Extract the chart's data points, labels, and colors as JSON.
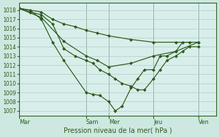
{
  "background_color": "#cce8e0",
  "plot_bg_color": "#d8eeea",
  "grid_color": "#b0ccc8",
  "line_color": "#2d5a1b",
  "marker_color": "#2d5a1b",
  "xlabel": "Pression niveau de la mer( hPa )",
  "ylim": [
    1006.5,
    1018.8
  ],
  "yticks": [
    1007,
    1008,
    1009,
    1010,
    1011,
    1012,
    1013,
    1014,
    1015,
    1016,
    1017,
    1018
  ],
  "xtick_labels": [
    "Mar",
    "Sam",
    "Mer",
    "Jeu",
    "Ven"
  ],
  "xtick_positions": [
    0,
    3,
    4,
    6,
    8
  ],
  "xlim": [
    0,
    8.8
  ],
  "series": [
    {
      "x": [
        0,
        1,
        1.5,
        2,
        2.5,
        3,
        3.5,
        4,
        5,
        6,
        7,
        8
      ],
      "y": [
        1018.2,
        1017.8,
        1017.0,
        1016.5,
        1016.2,
        1015.8,
        1015.5,
        1015.2,
        1014.8,
        1014.5,
        1014.5,
        1014.5
      ]
    },
    {
      "x": [
        0,
        1,
        2,
        3,
        3.5,
        4,
        5,
        6,
        7,
        8
      ],
      "y": [
        1018.2,
        1017.2,
        1014.6,
        1013.0,
        1012.5,
        1011.8,
        1012.2,
        1013.0,
        1013.5,
        1014.5
      ]
    },
    {
      "x": [
        0,
        0.5,
        1,
        1.5,
        2,
        3,
        3.3,
        3.6,
        4,
        4.3,
        4.6,
        5,
        5.3,
        5.6,
        6,
        6.3,
        6.6,
        7,
        7.3,
        7.6
      ],
      "y": [
        1018.2,
        1018.0,
        1017.0,
        1014.5,
        1012.5,
        1009.0,
        1008.8,
        1008.7,
        1008.0,
        1007.0,
        1007.5,
        1009.5,
        1010.5,
        1011.5,
        1011.5,
        1013.0,
        1013.0,
        1013.5,
        1014.5,
        1014.5
      ]
    },
    {
      "x": [
        0,
        0.5,
        1,
        1.5,
        2,
        2.5,
        3,
        3.3,
        3.6,
        4,
        4.3,
        4.6,
        5,
        5.3,
        5.6,
        6,
        6.3,
        6.6,
        7,
        7.3,
        7.6,
        8
      ],
      "y": [
        1018.2,
        1017.8,
        1017.5,
        1016.5,
        1013.8,
        1013.0,
        1012.5,
        1012.2,
        1011.5,
        1011.0,
        1010.5,
        1010.0,
        1009.7,
        1009.3,
        1009.3,
        1010.5,
        1011.5,
        1012.5,
        1013.0,
        1013.5,
        1014.0,
        1014.0
      ]
    }
  ]
}
